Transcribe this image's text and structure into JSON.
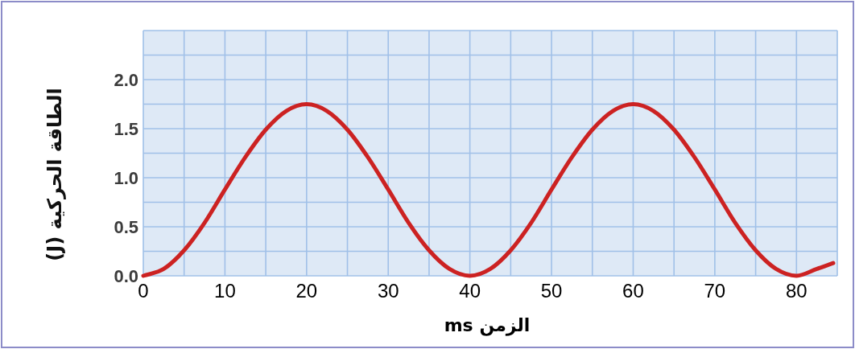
{
  "chart_data": {
    "type": "line",
    "xlabel": "الزمن ms",
    "ylabel": "الطاقة الحركية (J)",
    "x": [
      0,
      2.5,
      5,
      7.5,
      10,
      12.5,
      15,
      17.5,
      20,
      22.5,
      25,
      27.5,
      30,
      32.5,
      35,
      37.5,
      40,
      42.5,
      45,
      47.5,
      50,
      52.5,
      55,
      57.5,
      60,
      62.5,
      65,
      67.5,
      70,
      72.5,
      75,
      77.5,
      80,
      82.5,
      84.5
    ],
    "series": [
      {
        "color": "#cc2222",
        "values": [
          0,
          0.07,
          0.26,
          0.54,
          0.88,
          1.21,
          1.49,
          1.68,
          1.75,
          1.68,
          1.49,
          1.21,
          0.88,
          0.54,
          0.26,
          0.07,
          0,
          0.07,
          0.26,
          0.54,
          0.88,
          1.21,
          1.49,
          1.68,
          1.75,
          1.68,
          1.49,
          1.21,
          0.88,
          0.54,
          0.26,
          0.07,
          0,
          0.07,
          0.13
        ]
      }
    ],
    "xlim": [
      0,
      85
    ],
    "ylim": [
      0,
      2.5
    ],
    "xticks": [
      0,
      {
        "value": 5,
        "label": null
      },
      10,
      {
        "value": 15,
        "label": null
      },
      20,
      {
        "value": 25,
        "label": null
      },
      30,
      {
        "value": 35,
        "label": null
      },
      40,
      {
        "value": 45,
        "label": null
      },
      50,
      {
        "value": 55,
        "label": null
      },
      60,
      {
        "value": 65,
        "label": null
      },
      70,
      {
        "value": 75,
        "label": null
      },
      80
    ],
    "yticks": [
      {
        "value": 0,
        "label": "0.0"
      },
      {
        "value": 0.25,
        "label": null
      },
      {
        "value": 0.5,
        "label": "0.5"
      },
      {
        "value": 0.75,
        "label": null
      },
      {
        "value": 1,
        "label": "1.0"
      },
      {
        "value": 1.25,
        "label": null
      },
      {
        "value": 1.5,
        "label": "1.5"
      },
      {
        "value": 1.75,
        "label": null
      },
      {
        "value": 2,
        "label": "2.0"
      },
      {
        "value": 2.25,
        "label": null
      }
    ],
    "grid": true,
    "marker": "none",
    "line_style": "solid"
  }
}
